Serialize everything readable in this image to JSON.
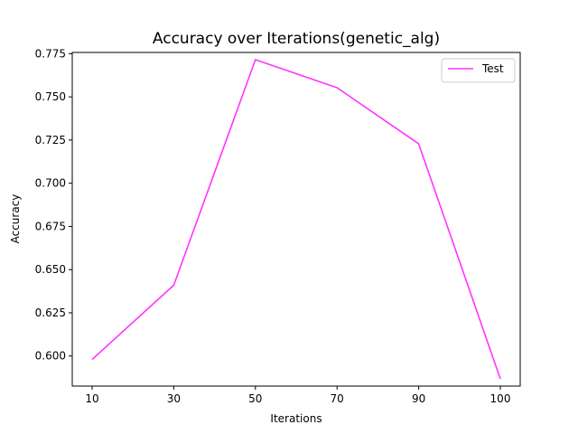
{
  "chart_data": {
    "type": "line",
    "title": "Accuracy over Iterations(genetic_alg)",
    "xlabel": "Iterations",
    "ylabel": "Accuracy",
    "categories": [
      "10",
      "30",
      "50",
      "70",
      "90",
      "100"
    ],
    "series": [
      {
        "name": "Test",
        "color": "#ff33ff",
        "values": [
          0.598,
          0.641,
          0.7715,
          0.7553,
          0.7228,
          0.5868
        ]
      }
    ],
    "yticks": [
      "0.600",
      "0.625",
      "0.650",
      "0.675",
      "0.700",
      "0.725",
      "0.750",
      "0.775"
    ],
    "ylim": [
      0.5826,
      0.7757
    ],
    "grid": false,
    "legend": "top-right"
  }
}
